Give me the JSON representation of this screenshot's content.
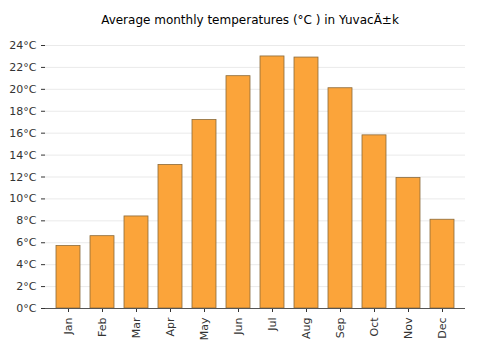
{
  "chart_data": {
    "type": "bar",
    "title": "Average monthly temperatures (°C ) in YuvacÄ±k",
    "categories": [
      "Jan",
      "Feb",
      "Mar",
      "Apr",
      "May",
      "Jun",
      "Jul",
      "Aug",
      "Sep",
      "Oct",
      "Nov",
      "Dec"
    ],
    "values": [
      5.7,
      6.6,
      8.4,
      13.1,
      17.2,
      21.2,
      23.0,
      22.9,
      20.1,
      15.8,
      11.9,
      8.1
    ],
    "color": "#fba43a",
    "ylim": [
      0,
      24
    ],
    "yticks": [
      {
        "value": 0,
        "label": "0°C"
      },
      {
        "value": 2,
        "label": "2°C"
      },
      {
        "value": 4,
        "label": "4°C"
      },
      {
        "value": 6,
        "label": "6°C"
      },
      {
        "value": 8,
        "label": "8°C"
      },
      {
        "value": 10,
        "label": "10°C"
      },
      {
        "value": 12,
        "label": "12°C"
      },
      {
        "value": 14,
        "label": "14°C"
      },
      {
        "value": 16,
        "label": "16°C"
      },
      {
        "value": 18,
        "label": "18°C"
      },
      {
        "value": 20,
        "label": "20°C"
      },
      {
        "value": 22,
        "label": "22°C"
      },
      {
        "value": 24,
        "label": "24°C"
      }
    ],
    "grid": true
  }
}
